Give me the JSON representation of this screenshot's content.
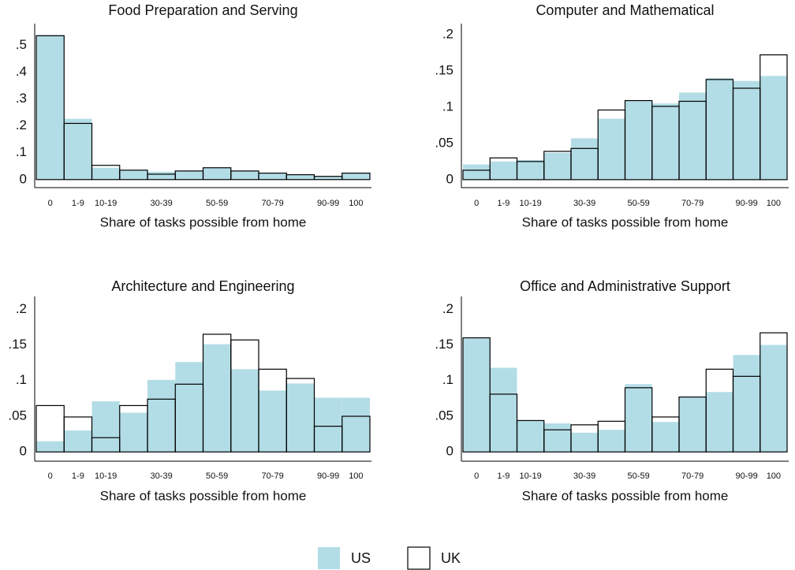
{
  "chart_data": [
    {
      "type": "bar",
      "title": "Food Preparation and Serving",
      "x_label": "Share of tasks possible from home",
      "categories": [
        "0",
        "1-9",
        "10-19",
        null,
        "30-39",
        null,
        "50-59",
        null,
        "70-79",
        null,
        "90-99",
        "100"
      ],
      "series": [
        {
          "name": "US",
          "color": "#b3dde6",
          "values": [
            0.538,
            0.226,
            0.044,
            0.035,
            0.029,
            0.032,
            0.044,
            0.032,
            0.024,
            0.018,
            0.012,
            0.024
          ]
        },
        {
          "name": "UK",
          "color": "#000000",
          "outline": true,
          "values": [
            0.535,
            0.209,
            0.053,
            0.035,
            0.02,
            0.032,
            0.044,
            0.032,
            0.024,
            0.018,
            0.012,
            0.024
          ]
        }
      ],
      "ylim": [
        -0.03,
        0.58
      ],
      "yticks": [
        0,
        {
          "value": 0.1,
          "label": ".1"
        },
        {
          "value": 0.2,
          "label": ".2"
        },
        {
          "value": 0.3,
          "label": ".3"
        },
        {
          "value": 0.4,
          "label": ".4"
        },
        {
          "value": 0.5,
          "label": ".5"
        }
      ]
    },
    {
      "type": "bar",
      "title": "Computer and Mathematical",
      "x_label": "Share of tasks possible from home",
      "categories": [
        "0",
        "1-9",
        "10-19",
        null,
        "30-39",
        null,
        "50-59",
        null,
        "70-79",
        null,
        "90-99",
        "100"
      ],
      "series": [
        {
          "name": "US",
          "color": "#b3dde6",
          "values": [
            0.021,
            0.025,
            0.027,
            0.037,
            0.057,
            0.084,
            0.109,
            0.105,
            0.12,
            0.14,
            0.136,
            0.143
          ]
        },
        {
          "name": "UK",
          "color": "#000000",
          "outline": true,
          "values": [
            0.013,
            0.03,
            0.025,
            0.039,
            0.043,
            0.096,
            0.109,
            0.101,
            0.108,
            0.138,
            0.126,
            0.172
          ]
        }
      ],
      "ylim": [
        -0.011,
        0.215
      ],
      "yticks": [
        0,
        {
          "value": 0.05,
          "label": ".05"
        },
        {
          "value": 0.1,
          "label": ".1"
        },
        {
          "value": 0.15,
          "label": ".15"
        },
        {
          "value": 0.2,
          "label": ".2"
        }
      ]
    },
    {
      "type": "bar",
      "title": "Architecture and Engineering",
      "x_label": "Share of tasks possible from home",
      "categories": [
        "0",
        "1-9",
        "10-19",
        null,
        "30-39",
        null,
        "50-59",
        null,
        "70-79",
        null,
        "90-99",
        "100"
      ],
      "series": [
        {
          "name": "US",
          "color": "#b3dde6",
          "values": [
            0.015,
            0.03,
            0.071,
            0.055,
            0.101,
            0.126,
            0.151,
            0.116,
            0.086,
            0.096,
            0.076,
            0.076
          ]
        },
        {
          "name": "UK",
          "color": "#000000",
          "outline": true,
          "values": [
            0.065,
            0.049,
            0.02,
            0.065,
            0.074,
            0.095,
            0.165,
            0.157,
            0.116,
            0.103,
            0.036,
            0.05
          ]
        }
      ],
      "ylim": [
        -0.013,
        0.218
      ],
      "yticks": [
        0,
        {
          "value": 0.05,
          "label": ".05"
        },
        {
          "value": 0.1,
          "label": ".1"
        },
        {
          "value": 0.15,
          "label": ".15"
        },
        {
          "value": 0.2,
          "label": ".2"
        }
      ]
    },
    {
      "type": "bar",
      "title": "Office and Administrative Support",
      "x_label": "Share of tasks possible from home",
      "categories": [
        "0",
        "1-9",
        "10-19",
        null,
        "30-39",
        null,
        "50-59",
        null,
        "70-79",
        null,
        "90-99",
        "100"
      ],
      "series": [
        {
          "name": "US",
          "color": "#b3dde6",
          "values": [
            0.16,
            0.118,
            0.044,
            0.04,
            0.027,
            0.031,
            0.095,
            0.042,
            0.077,
            0.084,
            0.136,
            0.15
          ]
        },
        {
          "name": "UK",
          "color": "#000000",
          "outline": true,
          "values": [
            0.16,
            0.081,
            0.044,
            0.031,
            0.038,
            0.043,
            0.09,
            0.049,
            0.077,
            0.116,
            0.106,
            0.167
          ]
        }
      ],
      "ylim": [
        -0.013,
        0.218
      ],
      "yticks": [
        0,
        {
          "value": 0.05,
          "label": ".05"
        },
        {
          "value": 0.1,
          "label": ".1"
        },
        {
          "value": 0.15,
          "label": ".15"
        },
        {
          "value": 0.2,
          "label": ".2"
        }
      ]
    }
  ]
}
